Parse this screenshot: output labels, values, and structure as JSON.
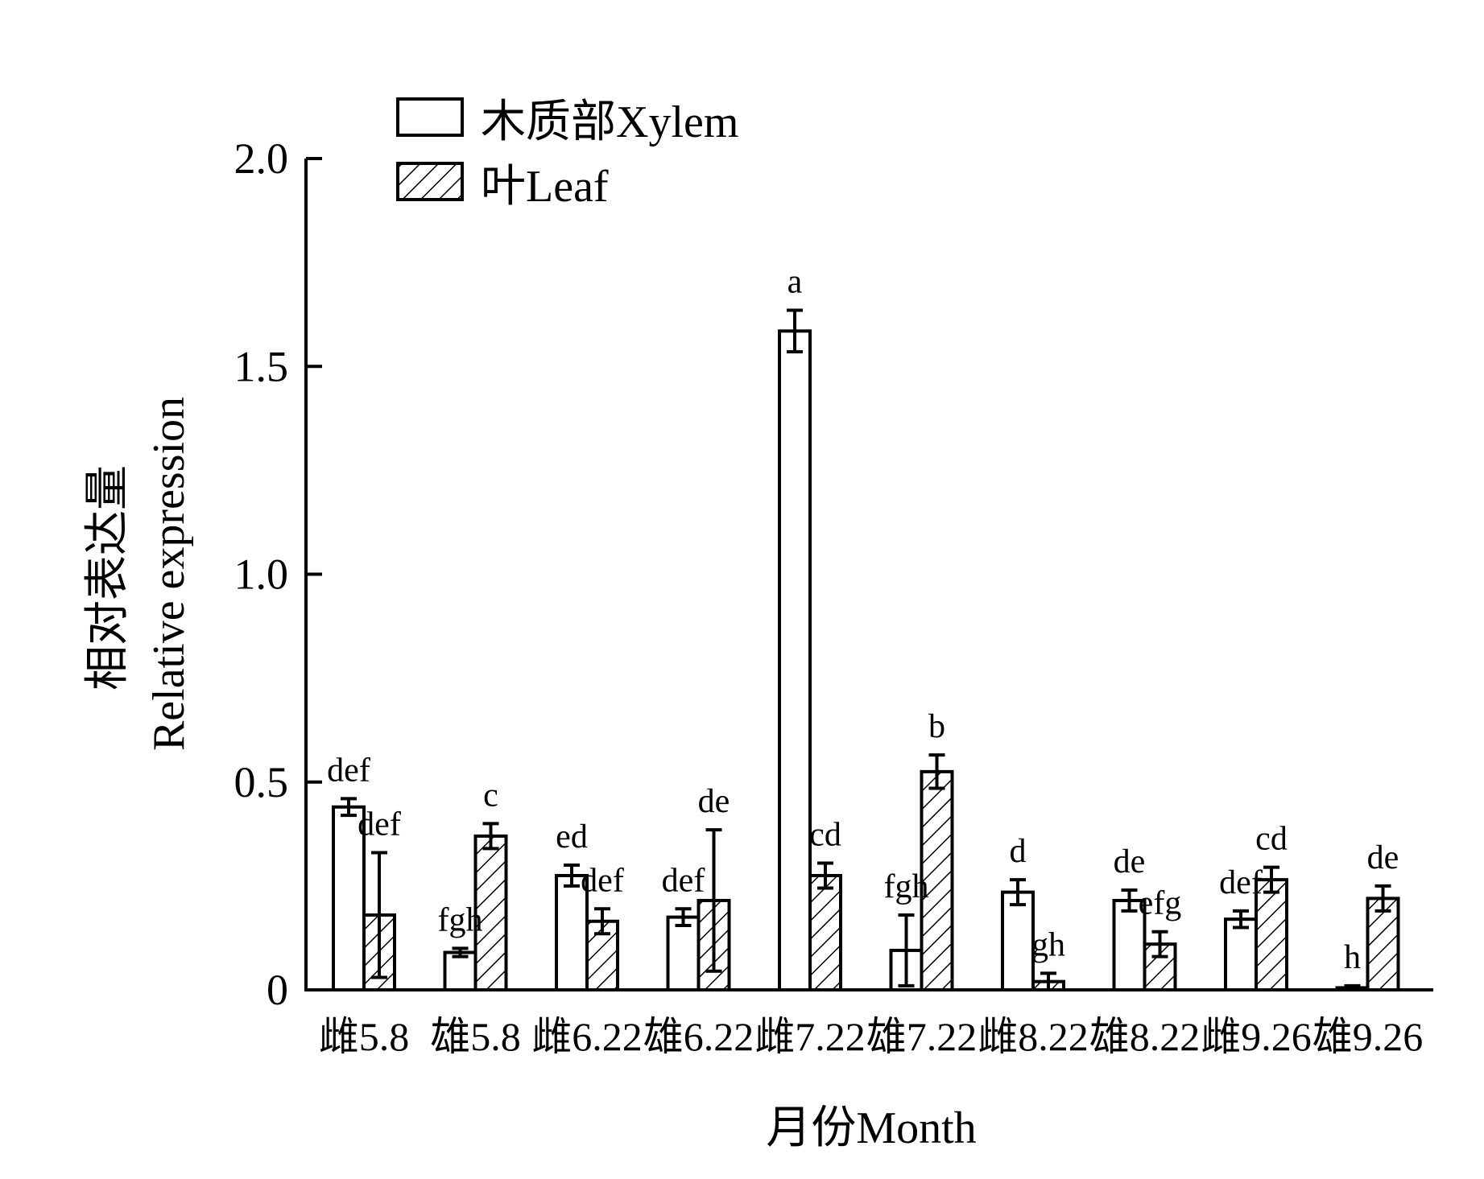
{
  "chart_data": {
    "type": "bar",
    "title": "",
    "xlabel": "月份Month",
    "ylabel_lines": [
      "相对表达量",
      "Relative expression"
    ],
    "ylim": [
      0,
      2.0
    ],
    "yticks": [
      {
        "value": 0,
        "label": "0"
      },
      {
        "value": 0.5,
        "label": "0.5"
      },
      {
        "value": 1.0,
        "label": "1.0"
      },
      {
        "value": 1.5,
        "label": "1.5"
      },
      {
        "value": 2.0,
        "label": "2.0"
      }
    ],
    "categories": [
      "雌5.8",
      "雄5.8",
      "雌6.22",
      "雄6.22",
      "雌7.22",
      "雄7.22",
      "雌8.22",
      "雄8.22",
      "雌9.26",
      "雄9.26"
    ],
    "legend_position": "top-left",
    "grid": false,
    "series": [
      {
        "name": "木质部Xylem",
        "pattern": "open",
        "values": [
          0.44,
          0.09,
          0.275,
          0.175,
          1.585,
          0.095,
          0.235,
          0.215,
          0.17,
          0.005
        ],
        "errors": [
          0.02,
          0.01,
          0.025,
          0.02,
          0.05,
          0.085,
          0.03,
          0.025,
          0.02,
          0.005
        ],
        "labels": [
          "def",
          "fgh",
          "ed",
          "def",
          "a",
          "fgh",
          "d",
          "de",
          "def",
          "h"
        ]
      },
      {
        "name": "叶Leaf",
        "pattern": "hatched",
        "values": [
          0.18,
          0.37,
          0.165,
          0.215,
          0.275,
          0.525,
          0.02,
          0.11,
          0.265,
          0.22
        ],
        "errors": [
          0.15,
          0.03,
          0.03,
          0.17,
          0.03,
          0.04,
          0.02,
          0.03,
          0.03,
          0.03
        ],
        "labels": [
          "def",
          "c",
          "def",
          "de",
          "cd",
          "b",
          "gh",
          "efg",
          "cd",
          "de"
        ]
      }
    ]
  }
}
